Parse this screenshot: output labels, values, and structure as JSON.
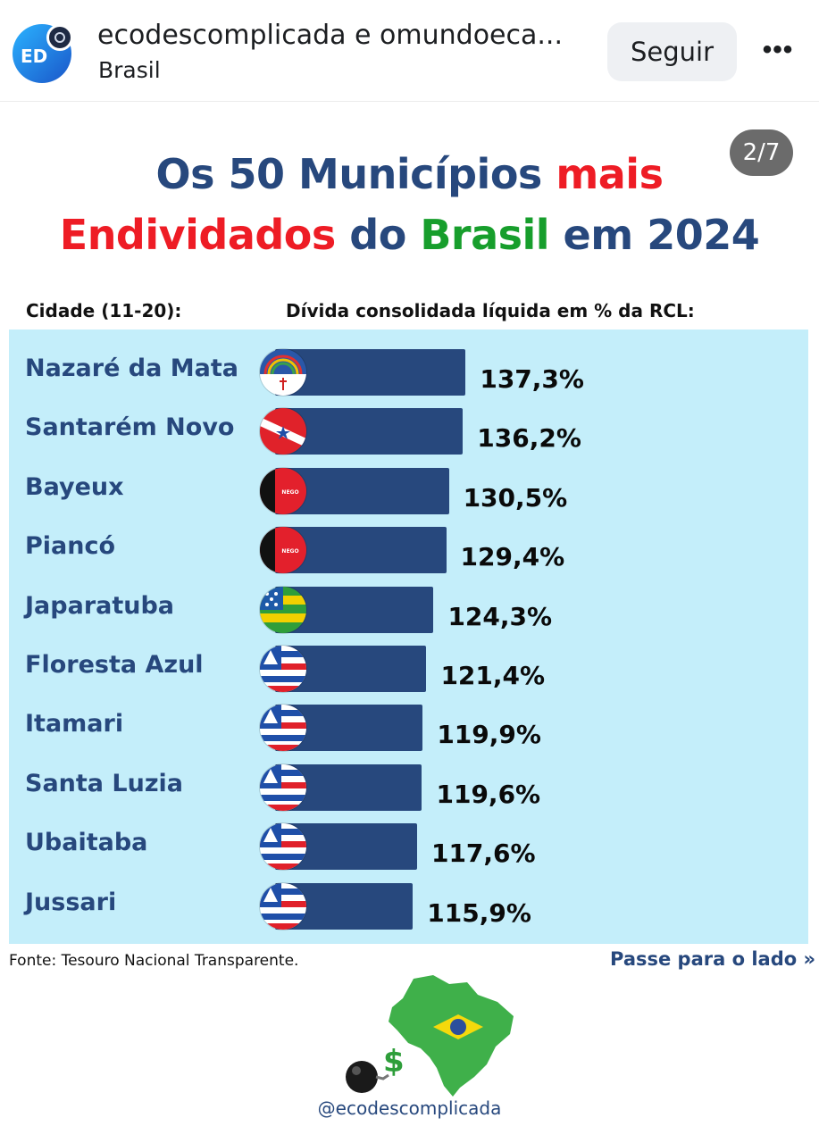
{
  "header": {
    "avatar_text": "ED",
    "account_name": "ecodescomplicada e omundoeca...",
    "location": "Brasil",
    "follow_label": "Seguir",
    "more_label": "•••"
  },
  "post": {
    "page_counter": "2/7",
    "title_line1": [
      {
        "text": "Os 50 Municípios ",
        "color": "blue"
      },
      {
        "text": "mais",
        "color": "red"
      }
    ],
    "title_line2": [
      {
        "text": "Endividados",
        "color": "red"
      },
      {
        "text": " do ",
        "color": "blue"
      },
      {
        "text": "Brasil",
        "color": "green"
      },
      {
        "text": " em 2024",
        "color": "blue"
      }
    ],
    "col_city": "Cidade (11-20):",
    "col_value": "Dívida consolidada líquida em % da RCL:",
    "source": "Fonte: Tesouro Nacional Transparente.",
    "swipe_label": "Passe para o lado »",
    "handle": "@ecodescomplicada"
  },
  "colors": {
    "blue": "#27487d",
    "red": "#ee1c25",
    "green": "#179e2c",
    "panel": "#c4eefa"
  },
  "chart_data": {
    "type": "bar",
    "orientation": "horizontal",
    "categories": [
      "Nazaré da Mata",
      "Santarém Novo",
      "Bayeux",
      "Piancó",
      "Japaratuba",
      "Floresta Azul",
      "Itamari",
      "Santa Luzia",
      "Ubaitaba",
      "Jussari"
    ],
    "values": [
      137.3,
      136.2,
      130.5,
      129.4,
      124.3,
      121.4,
      119.9,
      119.6,
      117.6,
      115.9
    ],
    "value_labels": [
      "137,3%",
      "136,2%",
      "130,5%",
      "129,4%",
      "124,3%",
      "121,4%",
      "119,9%",
      "119,6%",
      "117,6%",
      "115,9%"
    ],
    "flags": [
      "pernambuco-flag-icon",
      "para-flag-icon",
      "paraiba-flag-icon",
      "paraiba-flag-icon",
      "sergipe-flag-icon",
      "bahia-flag-icon",
      "bahia-flag-icon",
      "bahia-flag-icon",
      "bahia-flag-icon",
      "bahia-flag-icon"
    ]
  }
}
